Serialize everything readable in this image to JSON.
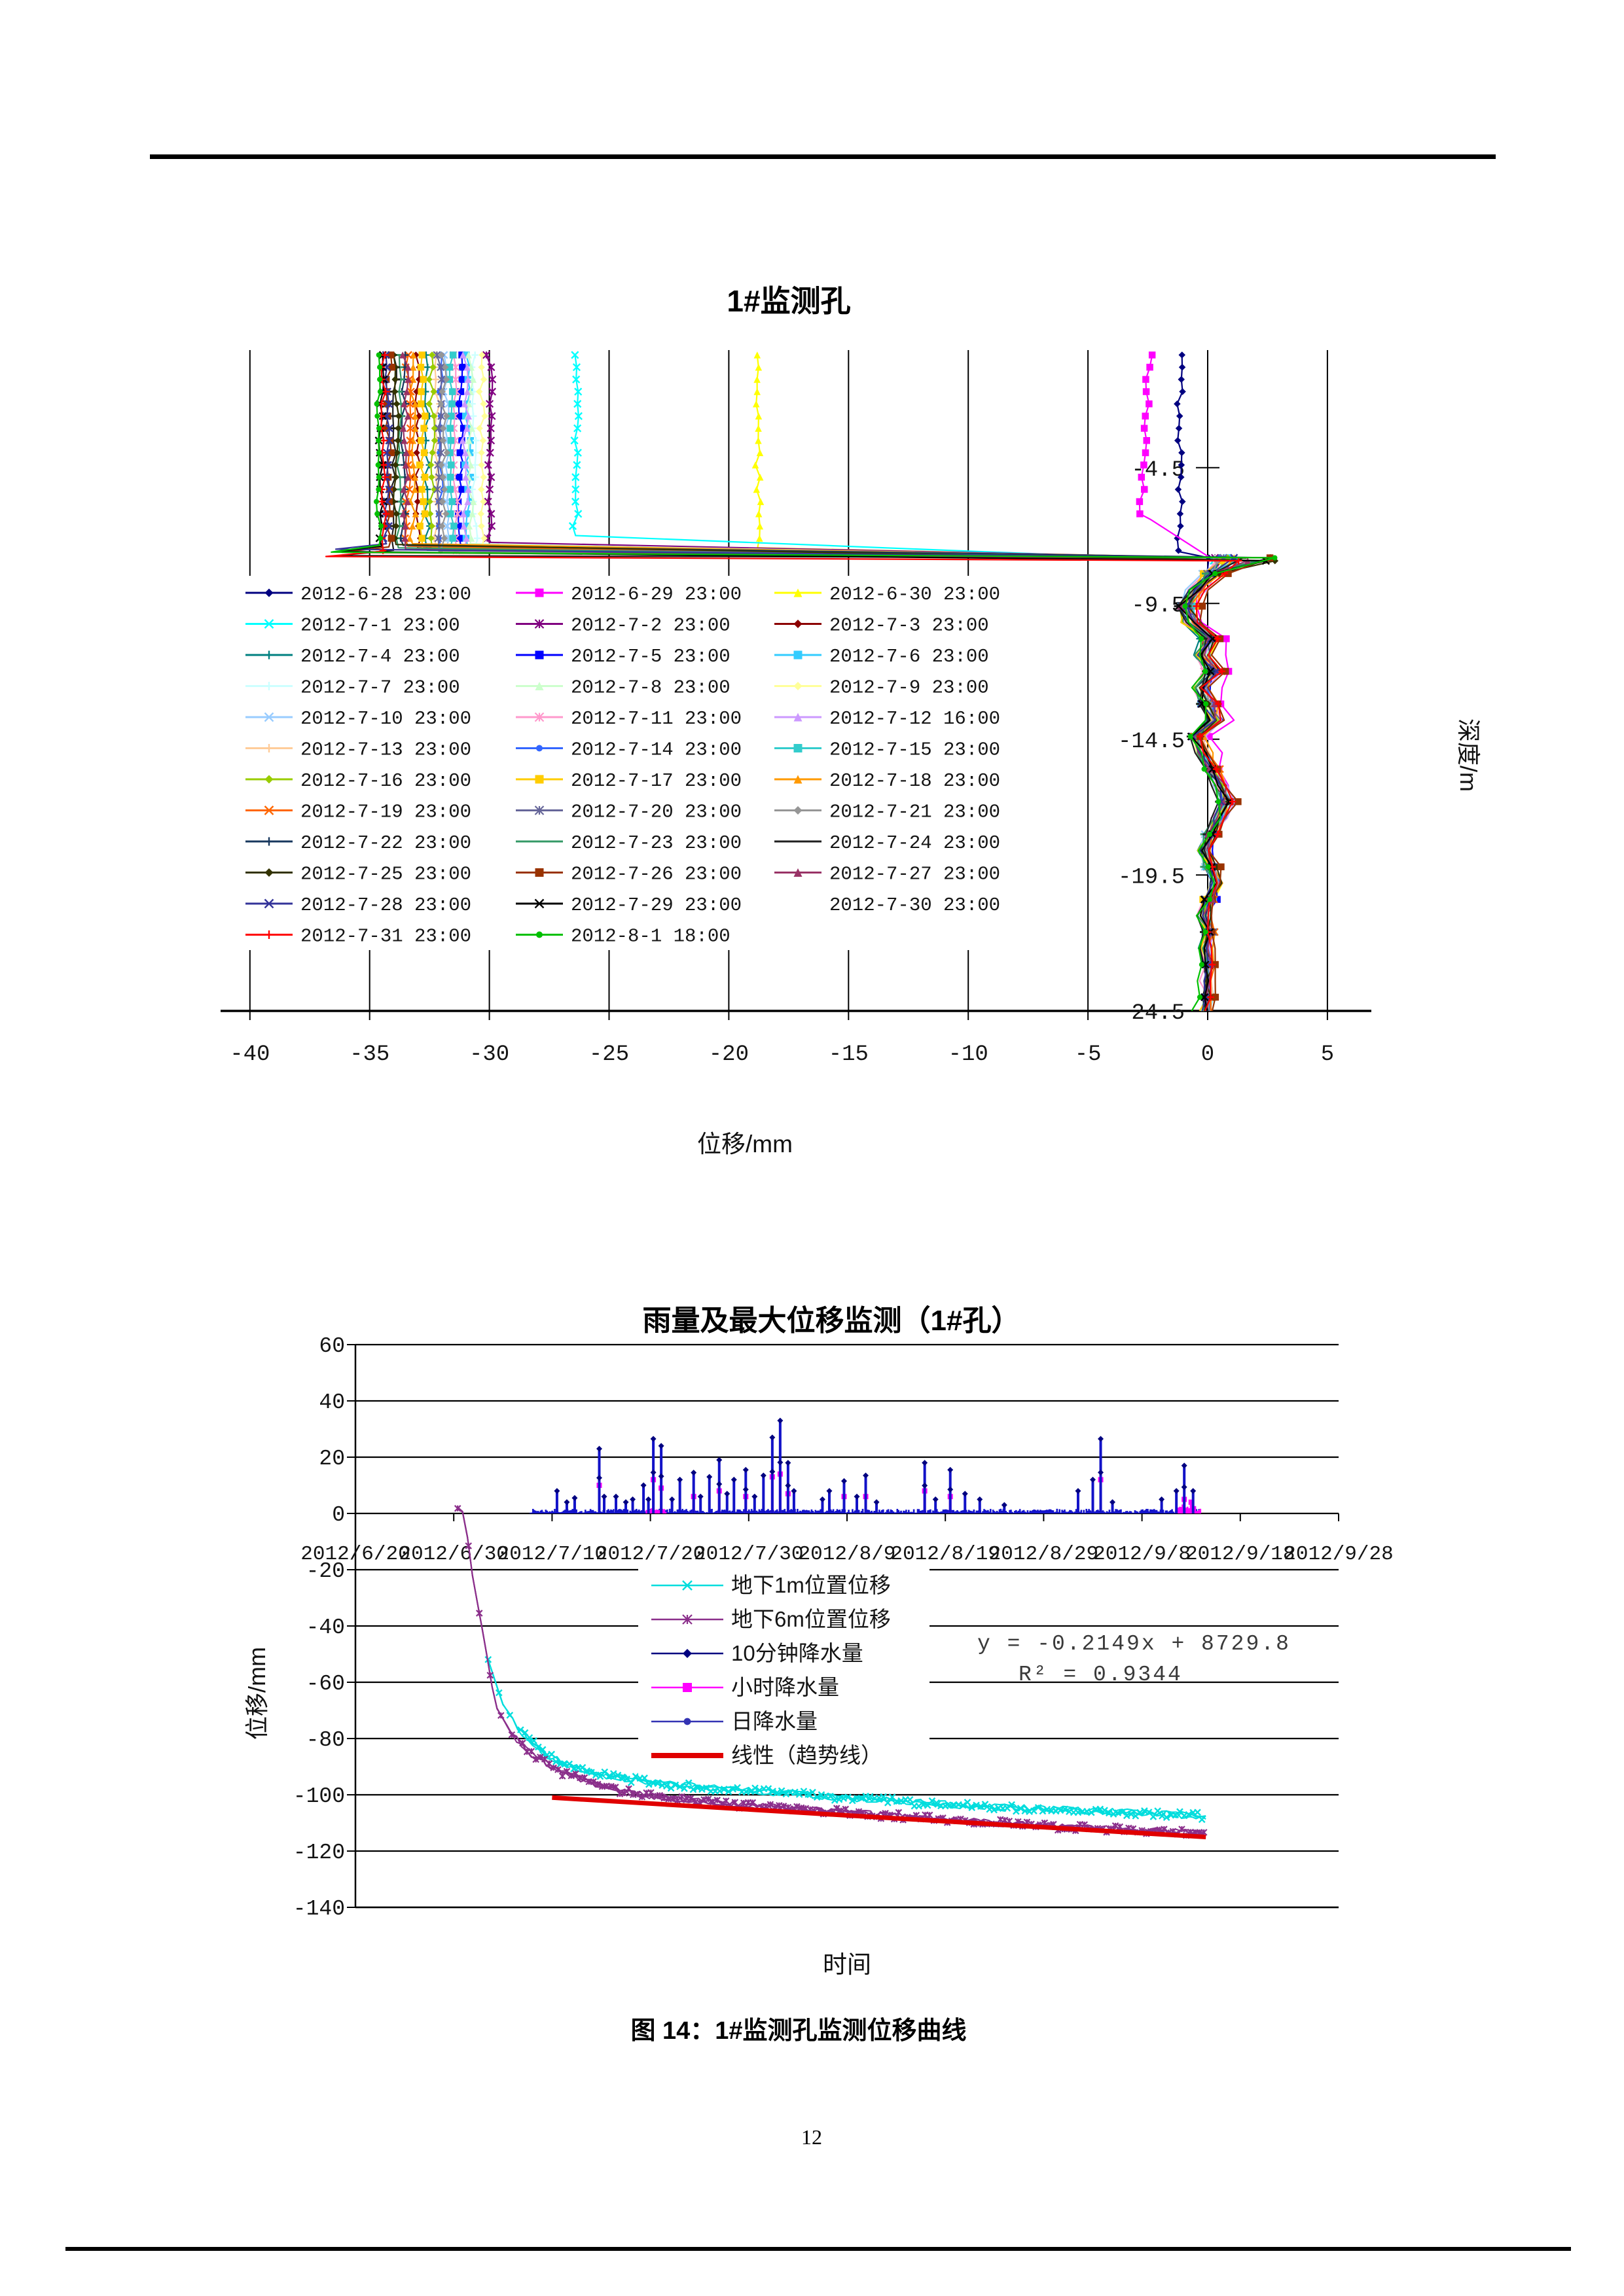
{
  "page": {
    "number": "12",
    "caption": "图 14：1#监测孔监测位移曲线"
  },
  "chart_data": [
    {
      "id": "borehole-depth-displacement",
      "type": "line",
      "title": "1#监测孔",
      "xlabel": "位移/mm",
      "ylabel_right": "深度/m",
      "xlim": [
        -40,
        5
      ],
      "depth_range": [
        0,
        -24.5
      ],
      "x_ticks": [
        -40,
        -35,
        -30,
        -25,
        -20,
        -15,
        -10,
        -5,
        0,
        5
      ],
      "x_tick_labels": [
        "-40",
        "-35",
        "-30",
        "-25",
        "-20",
        "-15",
        "-10",
        "-5",
        "0",
        "5"
      ],
      "depth_ticks": [
        {
          "label": "-4.5",
          "m": 4.5
        },
        {
          "label": "-9.5",
          "m": 9.5
        },
        {
          "label": "-14.5",
          "m": 14.5
        },
        {
          "label": "-19.5",
          "m": 19.5
        },
        {
          "label": "24.5",
          "m": 24.5
        }
      ],
      "kink_depth": -7.8,
      "braid": [
        [
          8.4,
          0.2
        ],
        [
          9.0,
          -0.5
        ],
        [
          9.6,
          -0.9
        ],
        [
          10.2,
          -0.7
        ],
        [
          10.8,
          0.1
        ],
        [
          11.4,
          -0.2
        ],
        [
          12.0,
          0.25
        ],
        [
          12.6,
          -0.3
        ],
        [
          13.2,
          0.0
        ],
        [
          13.8,
          0.3
        ],
        [
          14.4,
          -0.45
        ],
        [
          15.0,
          -0.2
        ],
        [
          15.6,
          0.2
        ],
        [
          16.2,
          0.55
        ],
        [
          16.8,
          0.8
        ],
        [
          17.4,
          0.5
        ],
        [
          18.0,
          0.1
        ],
        [
          18.6,
          -0.15
        ],
        [
          19.2,
          0.1
        ],
        [
          19.8,
          0.35
        ],
        [
          20.4,
          0.1
        ],
        [
          21.0,
          -0.15
        ],
        [
          21.6,
          0.05
        ],
        [
          22.2,
          -0.1
        ],
        [
          22.8,
          0.05
        ],
        [
          23.4,
          -0.05
        ],
        [
          24.0,
          0.0
        ],
        [
          24.5,
          -0.1
        ]
      ],
      "series": [
        {
          "label": "2012-6-28 23:00",
          "color": "#000080",
          "marker": "diamond",
          "top": -1.15,
          "kd": 7.6,
          "spike": 0.05,
          "off": -0.12
        },
        {
          "label": "2012-6-29 23:00",
          "color": "#FF00FF",
          "marker": "square",
          "top": -2.4,
          "kd": 6.4,
          "spike": 0.3,
          "off": 0.2,
          "bulge": 0.5,
          "slope": -0.07
        },
        {
          "label": "2012-6-30 23:00",
          "color": "#FFFF00",
          "marker": "triangle",
          "top": -18.8,
          "kd": 7.45,
          "spike": 0.4
        },
        {
          "label": "2012-7-1 23:00",
          "color": "#00FFFF",
          "marker": "x",
          "top": -26.4,
          "kd": 7.0,
          "spike": 0.25
        },
        {
          "label": "2012-7-2 23:00",
          "color": "#800080",
          "marker": "star",
          "top": -30.0,
          "kd": 7.25,
          "spike": 0.3
        },
        {
          "label": "2012-7-3 23:00",
          "color": "#8B0000",
          "marker": "diamond",
          "top": -33.0
        },
        {
          "label": "2012-7-4 23:00",
          "color": "#008080",
          "marker": "plus",
          "top": -32.6
        },
        {
          "label": "2012-7-5 23:00",
          "color": "#0000FF",
          "marker": "square",
          "top": -31.2
        },
        {
          "label": "2012-7-6 23:00",
          "color": "#33CCFF",
          "marker": "square",
          "top": -30.9
        },
        {
          "label": "2012-7-7 23:00",
          "color": "#CCFFFF",
          "marker": "plus",
          "top": -30.6
        },
        {
          "label": "2012-7-8 23:00",
          "color": "#CCFFCC",
          "marker": "triangle",
          "top": -30.8
        },
        {
          "label": "2012-7-9 23:00",
          "color": "#FFFF99",
          "marker": "diamond",
          "top": -30.3
        },
        {
          "label": "2012-7-10 23:00",
          "color": "#99CCFF",
          "marker": "x",
          "top": -31.8
        },
        {
          "label": "2012-7-11 23:00",
          "color": "#FF99CC",
          "marker": "star",
          "top": -31.4
        },
        {
          "label": "2012-7-12 16:00",
          "color": "#CC99FF",
          "marker": "triangle",
          "top": -31.0
        },
        {
          "label": "2012-7-13 23:00",
          "color": "#FFCC99",
          "marker": "plus",
          "top": -32.2
        },
        {
          "label": "2012-7-14 23:00",
          "color": "#3366FF",
          "marker": "dot",
          "top": -32.0
        },
        {
          "label": "2012-7-15 23:00",
          "color": "#33CCCC",
          "marker": "square",
          "top": -31.6
        },
        {
          "label": "2012-7-16 23:00",
          "color": "#99CC00",
          "marker": "diamond",
          "top": -32.4
        },
        {
          "label": "2012-7-17 23:00",
          "color": "#FFCC00",
          "marker": "square",
          "top": -32.8
        },
        {
          "label": "2012-7-18 23:00",
          "color": "#FF9900",
          "marker": "triangle",
          "top": -33.2
        },
        {
          "label": "2012-7-19 23:00",
          "color": "#FF6600",
          "marker": "x",
          "top": -33.4
        },
        {
          "label": "2012-7-20 23:00",
          "color": "#666699",
          "marker": "star",
          "top": -32.1
        },
        {
          "label": "2012-7-21 23:00",
          "color": "#969696",
          "marker": "diamond",
          "top": -31.9
        },
        {
          "label": "2012-7-22 23:00",
          "color": "#17375E",
          "marker": "plus",
          "top": -33.6
        },
        {
          "label": "2012-7-23 23:00",
          "color": "#339966",
          "marker": "dash",
          "top": -33.8
        },
        {
          "label": "2012-7-24 23:00",
          "color": "#1F1F1F",
          "marker": "dash",
          "top": -34.0
        },
        {
          "label": "2012-7-25 23:00",
          "color": "#333300",
          "marker": "diamond",
          "top": -33.9
        },
        {
          "label": "2012-7-26 23:00",
          "color": "#993300",
          "marker": "square",
          "top": -34.2,
          "off": 0.45,
          "spike": 2.6
        },
        {
          "label": "2012-7-27 23:00",
          "color": "#993366",
          "marker": "triangle",
          "top": -33.5
        },
        {
          "label": "2012-7-28 23:00",
          "color": "#333399",
          "marker": "x",
          "top": -34.3
        },
        {
          "label": "2012-7-29 23:00",
          "color": "#000000",
          "marker": "x",
          "top": -34.5
        },
        {
          "label": "2012-7-30 23:00",
          "color": "none",
          "marker": "none",
          "top": -34.1
        },
        {
          "label": "2012-7-31 23:00",
          "color": "#FF0000",
          "marker": "plus",
          "top": -34.4
        },
        {
          "label": "2012-8-1 18:00",
          "color": "#00C000",
          "marker": "dot",
          "top": -34.6,
          "spike": 2.8,
          "off": -0.2,
          "hook2": true,
          "drift": -0.35
        }
      ]
    },
    {
      "id": "rainfall-max-displacement",
      "type": "line",
      "title": "雨量及最大位移监测（1#孔）",
      "xlabel": "时间",
      "ylabel": "位移/mm",
      "ylim": [
        -140,
        60
      ],
      "y_ticks": [
        60,
        40,
        20,
        0,
        -20,
        -40,
        -60,
        -80,
        -100,
        -120,
        -140
      ],
      "y_tick_labels": [
        "60",
        "40",
        "20",
        "0",
        "-20",
        "-40",
        "-60",
        "-80",
        "-100",
        "-120",
        "-140"
      ],
      "x_tick_labels": [
        "2012/6/20",
        "2012/6/30",
        "2012/7/10",
        "2012/7/20",
        "2012/7/30",
        "2012/8/9",
        "2012/8/19",
        "2012/8/29",
        "2012/9/8",
        "2012/9/18",
        "2012/9/28"
      ],
      "trend_eq_line1": "y = -0.2149x + 8729.8",
      "trend_eq_line2": "R² = 0.9344",
      "legend": [
        {
          "label": "地下1m位置位移",
          "color": "#00DDDD",
          "marker": "x",
          "width": 2.5
        },
        {
          "label": "地下6m位置位移",
          "color": "#8B2F8B",
          "marker": "star",
          "width": 2.5
        },
        {
          "label": "10分钟降水量",
          "color": "#000080",
          "marker": "diamond",
          "width": 2.5
        },
        {
          "label": "小时降水量",
          "color": "#FF00FF",
          "marker": "square",
          "width": 2.5
        },
        {
          "label": "日降水量",
          "color": "#3333B3",
          "marker": "dot",
          "width": 2.5
        },
        {
          "label": "线性（趋势线）",
          "color": "#E00000",
          "marker": "none",
          "width": 8
        }
      ],
      "rain_band": {
        "start_day": 17.8,
        "end_day": 86.0,
        "max": 1.6
      },
      "rain_band_magenta": [
        [
          29.6,
          31.6,
          1.8
        ],
        [
          83.6,
          86.0,
          3.4
        ]
      ],
      "rain_10min_spikes": [
        [
          20.5,
          8
        ],
        [
          21.5,
          4
        ],
        [
          22.3,
          5.5
        ],
        [
          24.8,
          23
        ],
        [
          25.3,
          6
        ],
        [
          26.5,
          6
        ],
        [
          27.5,
          4
        ],
        [
          28.2,
          5
        ],
        [
          29.3,
          10
        ],
        [
          29.8,
          5
        ],
        [
          30.3,
          26.5
        ],
        [
          31.1,
          24
        ],
        [
          32.2,
          5
        ],
        [
          33,
          12
        ],
        [
          34.4,
          14.5
        ],
        [
          35.1,
          6
        ],
        [
          36,
          13
        ],
        [
          37,
          19
        ],
        [
          37.8,
          7
        ],
        [
          38.5,
          12
        ],
        [
          39.7,
          15.5
        ],
        [
          40.6,
          6
        ],
        [
          41.5,
          13.5
        ],
        [
          42.4,
          27
        ],
        [
          43.2,
          33
        ],
        [
          44,
          18
        ],
        [
          44.6,
          8
        ],
        [
          47.5,
          5
        ],
        [
          48.2,
          8
        ],
        [
          49.7,
          11.5
        ],
        [
          51,
          6
        ],
        [
          51.9,
          13.5
        ],
        [
          53,
          4
        ],
        [
          57.9,
          18
        ],
        [
          59,
          5
        ],
        [
          60.5,
          15.5
        ],
        [
          62,
          7
        ],
        [
          63.5,
          5
        ],
        [
          66,
          3
        ],
        [
          73.5,
          8
        ],
        [
          75,
          12
        ],
        [
          75.8,
          26.5
        ],
        [
          77,
          4
        ],
        [
          82,
          5
        ],
        [
          83.5,
          8
        ],
        [
          84.3,
          17
        ],
        [
          85.2,
          8
        ]
      ],
      "rain_hour_spikes": [
        [
          24.8,
          10
        ],
        [
          30.3,
          12
        ],
        [
          31.1,
          9
        ],
        [
          34.4,
          6
        ],
        [
          37,
          8
        ],
        [
          39.7,
          6
        ],
        [
          42.4,
          13
        ],
        [
          43.2,
          14
        ],
        [
          44,
          7
        ],
        [
          49.7,
          6
        ],
        [
          51.9,
          6
        ],
        [
          57.9,
          8
        ],
        [
          60.5,
          6
        ],
        [
          75.8,
          12
        ],
        [
          84.3,
          5
        ],
        [
          85,
          4
        ]
      ],
      "disp_1m": [
        [
          13.5,
          -52
        ],
        [
          15,
          -68
        ],
        [
          17,
          -78
        ],
        [
          19,
          -85
        ],
        [
          22,
          -90
        ],
        [
          26,
          -93.5
        ],
        [
          31,
          -96
        ],
        [
          38,
          -98
        ],
        [
          46,
          -100
        ],
        [
          56,
          -102.5
        ],
        [
          66,
          -104.5
        ],
        [
          76,
          -106
        ],
        [
          86.5,
          -107.5
        ]
      ],
      "disp_6m": [
        [
          10.4,
          2
        ],
        [
          11.1,
          0
        ],
        [
          11.8,
          -20
        ],
        [
          13.2,
          -47
        ],
        [
          14.2,
          -68
        ],
        [
          16,
          -79
        ],
        [
          18,
          -86
        ],
        [
          21,
          -92
        ],
        [
          25,
          -97
        ],
        [
          30,
          -100.5
        ],
        [
          37,
          -103
        ],
        [
          45,
          -105
        ],
        [
          55,
          -107.5
        ],
        [
          65,
          -110
        ],
        [
          75,
          -112
        ],
        [
          86.5,
          -113.5
        ]
      ],
      "trend_line": {
        "start": [
          20,
          -101
        ],
        "end": [
          86.5,
          -115
        ]
      }
    }
  ]
}
